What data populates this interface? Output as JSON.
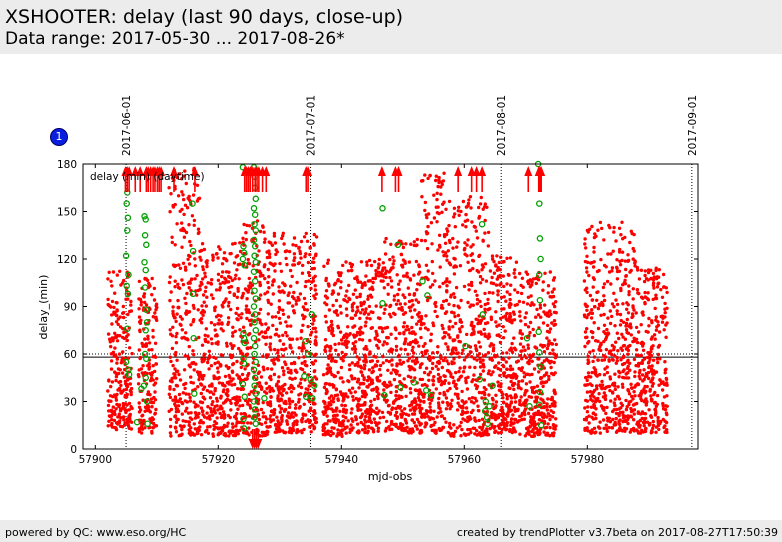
{
  "header": {
    "title": "XSHOOTER: delay (last 90 days, close-up)",
    "subtitle": "Data range: 2017-05-30 ... 2017-08-26*"
  },
  "badge": {
    "label": "1"
  },
  "footer": {
    "left": "powered by QC: www.eso.org/HC",
    "right": "created by trendPlotter v3.7beta on 2017-08-27T17:50:39"
  },
  "colors": {
    "red": "#ff0000",
    "green": "#00a000",
    "header_bg": "#ececec",
    "badge": "#0a1ee0"
  },
  "chart_data": {
    "type": "scatter",
    "xlabel": "mjd-obs",
    "ylabel": "delay_(min)",
    "legend_text": "delay (min) (daytime)",
    "xlim": [
      57898,
      57998
    ],
    "ylim": [
      0,
      180
    ],
    "xticks": [
      57900,
      57920,
      57940,
      57960,
      57980
    ],
    "yticks": [
      0,
      30,
      60,
      90,
      120,
      150,
      180
    ],
    "date_markers": [
      {
        "label": "2017-06-01",
        "x": 57905.0
      },
      {
        "label": "2017-07-01",
        "x": 57935.0
      },
      {
        "label": "2017-08-01",
        "x": 57966.0
      },
      {
        "label": "2017-09-01",
        "x": 57997.0
      }
    ],
    "reference_lines": [
      58,
      60
    ],
    "series": [
      {
        "color": "#ff0000",
        "marker": "dot",
        "clusters": [
          {
            "x": [
              57902.0,
              57906.0
            ],
            "y": [
              12,
              114
            ]
          },
          {
            "x": [
              57907.0,
              57910.0
            ],
            "y": [
              10,
              108
            ]
          },
          {
            "x": [
              57912.0,
              57917.0
            ],
            "y": [
              8,
              178
            ]
          },
          {
            "x": [
              57917.0,
              57923.5
            ],
            "y": [
              8,
              130
            ]
          },
          {
            "x": [
              57923.5,
              57928.0
            ],
            "y": [
              8,
              145
            ]
          },
          {
            "x": [
              57928.0,
              57936.0
            ],
            "y": [
              10,
              138
            ]
          },
          {
            "x": [
              57937.0,
              57941.5
            ],
            "y": [
              8,
              120
            ]
          },
          {
            "x": [
              57941.5,
              57947.0
            ],
            "y": [
              10,
              120
            ]
          },
          {
            "x": [
              57947.0,
              57953.0
            ],
            "y": [
              10,
              133
            ]
          },
          {
            "x": [
              57953.0,
              57957.0
            ],
            "y": [
              10,
              175
            ]
          },
          {
            "x": [
              57957.0,
              57964.0
            ],
            "y": [
              8,
              160
            ]
          },
          {
            "x": [
              57964.0,
              57969.0
            ],
            "y": [
              10,
              122
            ]
          },
          {
            "x": [
              57969.0,
              57975.0
            ],
            "y": [
              8,
              112
            ]
          },
          {
            "x": [
              57979.5,
              57988.0
            ],
            "y": [
              10,
              144
            ]
          },
          {
            "x": [
              57988.0,
              57993.0
            ],
            "y": [
              10,
              115
            ]
          }
        ]
      },
      {
        "color": "#00a000",
        "marker": "open-circle",
        "points": [
          [
            57905.2,
            162
          ],
          [
            57905.1,
            155
          ],
          [
            57905.3,
            146
          ],
          [
            57905.2,
            138
          ],
          [
            57905.0,
            122
          ],
          [
            57905.4,
            110
          ],
          [
            57905.1,
            103
          ],
          [
            57905.3,
            98
          ],
          [
            57905.2,
            76
          ],
          [
            57905.0,
            55
          ],
          [
            57905.4,
            50
          ],
          [
            57905.5,
            47
          ],
          [
            57906.8,
            17
          ],
          [
            57907.5,
            38
          ],
          [
            57907.9,
            40
          ],
          [
            57908.0,
            147
          ],
          [
            57908.2,
            145
          ],
          [
            57908.1,
            135
          ],
          [
            57908.3,
            129
          ],
          [
            57908.0,
            118
          ],
          [
            57908.2,
            113
          ],
          [
            57908.1,
            102
          ],
          [
            57908.3,
            88
          ],
          [
            57908.4,
            80
          ],
          [
            57908.2,
            75
          ],
          [
            57908.1,
            60
          ],
          [
            57908.3,
            57
          ],
          [
            57908.2,
            45
          ],
          [
            57908.4,
            30
          ],
          [
            57908.5,
            16
          ],
          [
            57908.6,
            172
          ],
          [
            57915.8,
            155
          ],
          [
            57915.9,
            125
          ],
          [
            57916.0,
            70
          ],
          [
            57916.1,
            35
          ],
          [
            57915.9,
            98
          ],
          [
            57924.0,
            178
          ],
          [
            57924.1,
            128
          ],
          [
            57924.2,
            124
          ],
          [
            57924.0,
            120
          ],
          [
            57924.3,
            116
          ],
          [
            57924.1,
            73
          ],
          [
            57924.2,
            70
          ],
          [
            57924.3,
            67
          ],
          [
            57924.1,
            57
          ],
          [
            57924.2,
            54
          ],
          [
            57924.0,
            41
          ],
          [
            57924.3,
            33
          ],
          [
            57924.1,
            19
          ],
          [
            57924.2,
            13
          ],
          [
            57925.8,
            178
          ],
          [
            57925.9,
            172
          ],
          [
            57926.0,
            165
          ],
          [
            57926.1,
            158
          ],
          [
            57925.8,
            152
          ],
          [
            57926.0,
            148
          ],
          [
            57925.9,
            142
          ],
          [
            57926.1,
            138
          ],
          [
            57925.8,
            132
          ],
          [
            57926.0,
            128
          ],
          [
            57925.9,
            122
          ],
          [
            57926.1,
            118
          ],
          [
            57925.8,
            112
          ],
          [
            57926.0,
            106
          ],
          [
            57925.9,
            100
          ],
          [
            57926.1,
            95
          ],
          [
            57925.8,
            90
          ],
          [
            57926.0,
            85
          ],
          [
            57925.9,
            80
          ],
          [
            57926.1,
            75
          ],
          [
            57925.8,
            70
          ],
          [
            57926.0,
            65
          ],
          [
            57925.9,
            60
          ],
          [
            57926.1,
            55
          ],
          [
            57925.8,
            50
          ],
          [
            57926.0,
            45
          ],
          [
            57925.9,
            40
          ],
          [
            57926.1,
            35
          ],
          [
            57925.8,
            30
          ],
          [
            57926.0,
            25
          ],
          [
            57925.9,
            20
          ],
          [
            57926.1,
            16
          ],
          [
            57927.5,
            32
          ],
          [
            57934.2,
            68
          ],
          [
            57934.6,
            60
          ],
          [
            57934.0,
            46
          ],
          [
            57935.2,
            85
          ],
          [
            57935.0,
            44
          ],
          [
            57935.3,
            32
          ],
          [
            57935.6,
            40
          ],
          [
            57934.3,
            33
          ],
          [
            57946.7,
            152
          ],
          [
            57946.7,
            92
          ],
          [
            57947.0,
            34
          ],
          [
            57949.2,
            129
          ],
          [
            57949.6,
            39
          ],
          [
            57951.8,
            42
          ],
          [
            57953.2,
            106
          ],
          [
            57953.8,
            37
          ],
          [
            57954.6,
            34
          ],
          [
            57954.0,
            97
          ],
          [
            57960.2,
            65
          ],
          [
            57962.5,
            44
          ],
          [
            57962.9,
            142
          ],
          [
            57963.0,
            85
          ],
          [
            57963.5,
            30
          ],
          [
            57963.4,
            24
          ],
          [
            57963.8,
            16
          ],
          [
            57964.6,
            40
          ],
          [
            57963.7,
            20
          ],
          [
            57964.1,
            27
          ],
          [
            57970.2,
            70
          ],
          [
            57972.0,
            180
          ],
          [
            57972.2,
            155
          ],
          [
            57972.3,
            133
          ],
          [
            57972.4,
            120
          ],
          [
            57972.2,
            110
          ],
          [
            57972.3,
            94
          ],
          [
            57972.1,
            74
          ],
          [
            57972.2,
            61
          ],
          [
            57972.4,
            52
          ],
          [
            57972.3,
            36
          ],
          [
            57972.2,
            28
          ],
          [
            57972.5,
            15
          ],
          [
            57970.6,
            27
          ]
        ]
      },
      {
        "color": "#ff0000",
        "marker": "arrow-up",
        "x": [
          57904.9,
          57905.2,
          57905.5,
          57906.5,
          57907.3,
          57908.3,
          57908.6,
          57909.0,
          57909.4,
          57909.7,
          57910.1,
          57910.4,
          57910.7,
          57912.8,
          57916.2,
          57924.3,
          57924.6,
          57924.9,
          57925.2,
          57925.6,
          57926.0,
          57926.3,
          57926.6,
          57927.2,
          57927.8,
          57934.3,
          57934.6,
          57946.6,
          57948.8,
          57949.3,
          57959.0,
          57961.2,
          57962.0,
          57962.9,
          57970.4,
          57972.1,
          57972.3,
          57972.5
        ],
        "value": 180
      },
      {
        "color": "#ff0000",
        "marker": "arrow-down",
        "x": [
          57925.6,
          57925.9,
          57926.2,
          57926.5
        ],
        "value": 0
      }
    ]
  }
}
